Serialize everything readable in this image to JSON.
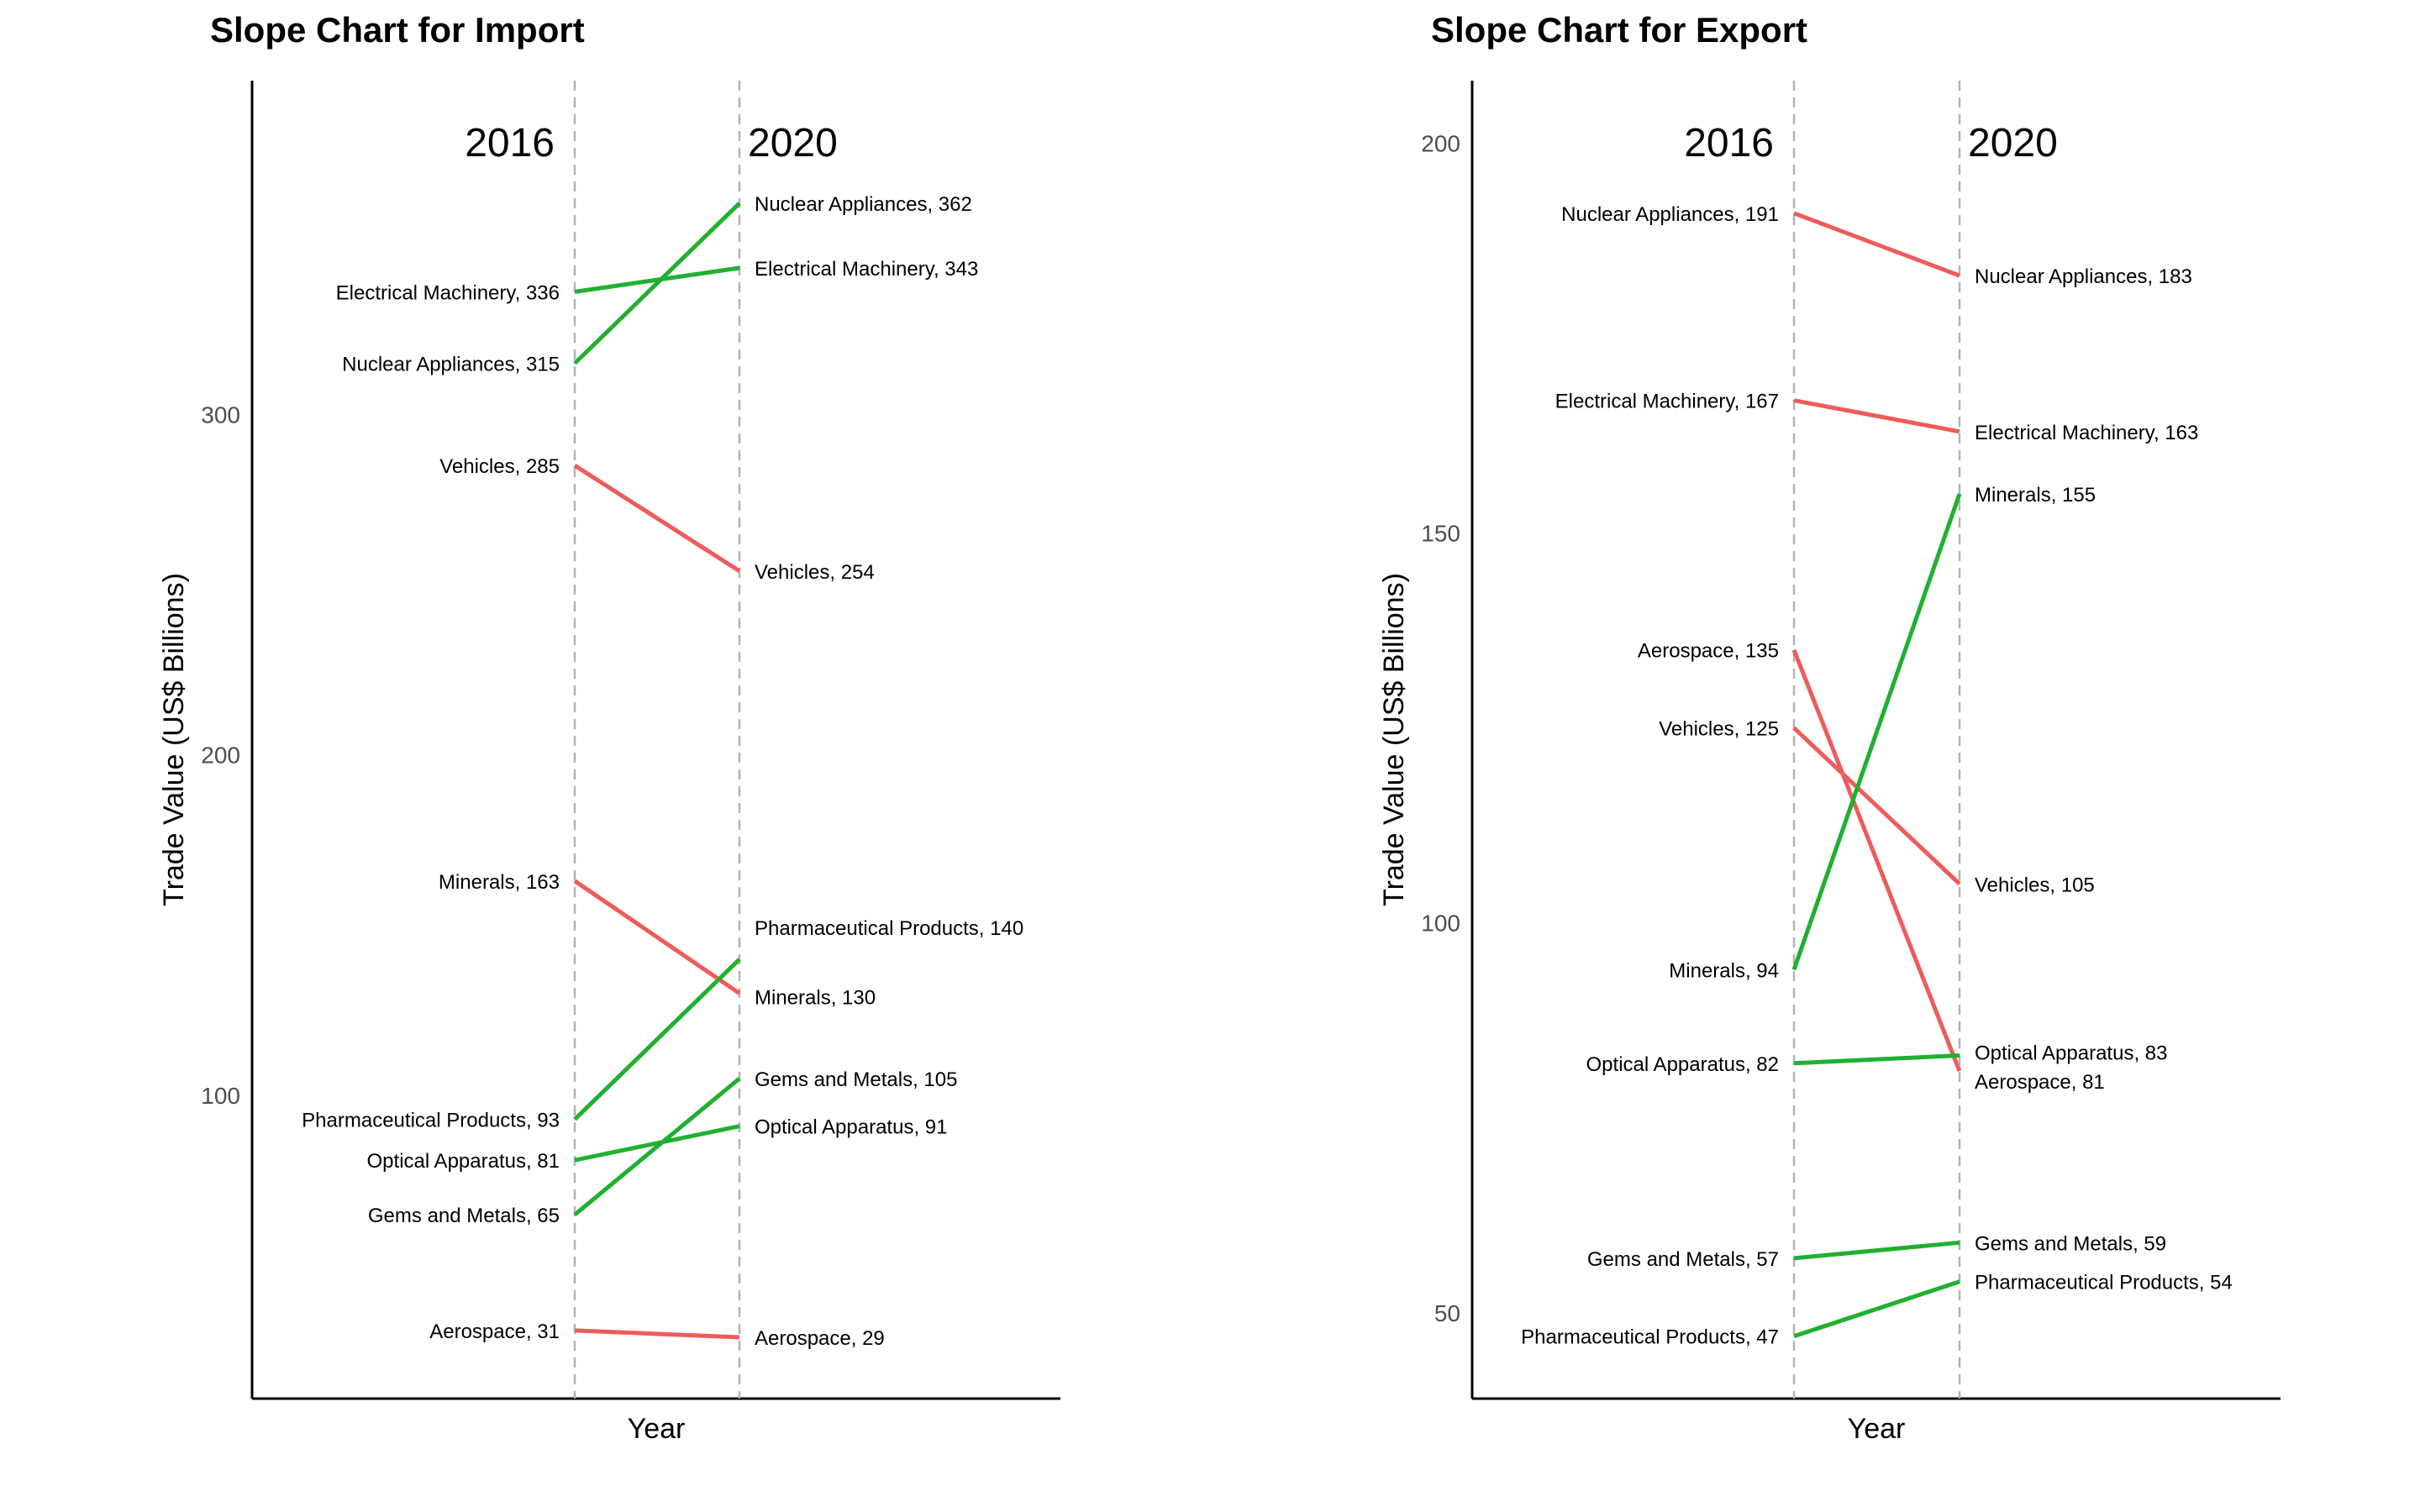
{
  "colors": {
    "increase": "#1fb02f",
    "decrease": "#ef5b5b",
    "guide": "#b3b3b3",
    "axis": "#000000"
  },
  "chart_data": [
    {
      "type": "slope",
      "title": "Slope Chart for Import",
      "xlabel": "Year",
      "ylabel": "Trade Value (US$ Billions)",
      "years": [
        "2016",
        "2020"
      ],
      "yticks": [
        100,
        200,
        300
      ],
      "ylim": [
        11,
        398
      ],
      "series": [
        {
          "name": "Electrical Machinery",
          "v2016": 336,
          "v2020": 343,
          "label2016": "Electrical Machinery, 336",
          "label2020": "Electrical Machinery, 343"
        },
        {
          "name": "Nuclear Appliances",
          "v2016": 315,
          "v2020": 362,
          "label2016": "Nuclear Appliances, 315",
          "label2020": "Nuclear Appliances, 362"
        },
        {
          "name": "Vehicles",
          "v2016": 285,
          "v2020": 254,
          "label2016": "Vehicles, 285",
          "label2020": "Vehicles, 254"
        },
        {
          "name": "Minerals",
          "v2016": 163,
          "v2020": 130,
          "label2016": "Minerals, 163",
          "label2020": "Minerals, 130"
        },
        {
          "name": "Pharmaceutical Products",
          "v2016": 93,
          "v2020": 140,
          "label2016": "Pharmaceutical Products, 93",
          "label2020": "Pharmaceutical Products, 140"
        },
        {
          "name": "Optical Apparatus",
          "v2016": 81,
          "v2020": 91,
          "label2016": "Optical Apparatus, 81",
          "label2020": "Optical Apparatus, 91"
        },
        {
          "name": "Gems and Metals",
          "v2016": 65,
          "v2020": 105,
          "label2016": "Gems and Metals, 65",
          "label2020": "Gems and Metals, 105"
        },
        {
          "name": "Aerospace",
          "v2016": 31,
          "v2020": 29,
          "label2016": "Aerospace, 31",
          "label2020": "Aerospace, 29"
        }
      ]
    },
    {
      "type": "slope",
      "title": "Slope Chart for Export",
      "xlabel": "Year",
      "ylabel": "Trade Value (US$ Billions)",
      "years": [
        "2016",
        "2020"
      ],
      "yticks": [
        50,
        100,
        150,
        200
      ],
      "ylim": [
        39,
        208
      ],
      "series": [
        {
          "name": "Nuclear Appliances",
          "v2016": 191,
          "v2020": 183,
          "label2016": "Nuclear Appliances, 191",
          "label2020": "Nuclear Appliances, 183"
        },
        {
          "name": "Electrical Machinery",
          "v2016": 167,
          "v2020": 163,
          "label2016": "Electrical Machinery, 167",
          "label2020": "Electrical Machinery, 163"
        },
        {
          "name": "Aerospace",
          "v2016": 135,
          "v2020": 81,
          "label2016": "Aerospace, 135",
          "label2020": "Aerospace, 81"
        },
        {
          "name": "Vehicles",
          "v2016": 125,
          "v2020": 105,
          "label2016": "Vehicles, 125",
          "label2020": "Vehicles, 105"
        },
        {
          "name": "Minerals",
          "v2016": 94,
          "v2020": 155,
          "label2016": "Minerals, 94",
          "label2020": "Minerals, 155"
        },
        {
          "name": "Optical Apparatus",
          "v2016": 82,
          "v2020": 83,
          "label2016": "Optical Apparatus, 82",
          "label2020": "Optical Apparatus, 83"
        },
        {
          "name": "Gems and Metals",
          "v2016": 57,
          "v2020": 59,
          "label2016": "Gems and Metals, 57",
          "label2020": "Gems and Metals, 59"
        },
        {
          "name": "Pharmaceutical Products",
          "v2016": 47,
          "v2020": 54,
          "label2016": "Pharmaceutical Products, 47",
          "label2020": "Pharmaceutical Products, 54"
        }
      ]
    }
  ]
}
